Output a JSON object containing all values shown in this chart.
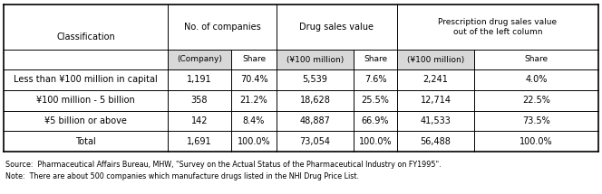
{
  "col_headers_row1": [
    "Classification",
    "No. of companies",
    "Drug sales value",
    "Prescription drug sales value\nout of the left column"
  ],
  "col_headers_row2": [
    "(Company)",
    "Share",
    "(¥100 million)",
    "Share",
    "(¥100 million)",
    "Share"
  ],
  "rows": [
    [
      "Less than ¥100 million in capital",
      "1,191",
      "70.4%",
      "5,539",
      "7.6%",
      "2,241",
      "4.0%"
    ],
    [
      "¥100 million - 5 billion",
      "358",
      "21.2%",
      "18,628",
      "25.5%",
      "12,714",
      "22.5%"
    ],
    [
      "¥5 billion or above",
      "142",
      "8.4%",
      "48,887",
      "66.9%",
      "41,533",
      "73.5%"
    ],
    [
      "Total",
      "1,691",
      "100.0%",
      "73,054",
      "100.0%",
      "56,488",
      "100.0%"
    ]
  ],
  "footer": [
    "Source:  Pharmaceutical Affairs Bureau, MHW, \"Survey on the Actual Status of the Pharmaceutical Industry on FY1995\".",
    "Note:  There are about 500 companies which manufacture drugs listed in the NHI Drug Price List."
  ],
  "bg_color": "#ffffff",
  "line_color": "#000000",
  "shaded_header_bg": "#d8d8d8",
  "font_size": 7.0,
  "header_font_size": 7.0,
  "figw": 6.64,
  "figh": 2.15,
  "dpi": 100
}
